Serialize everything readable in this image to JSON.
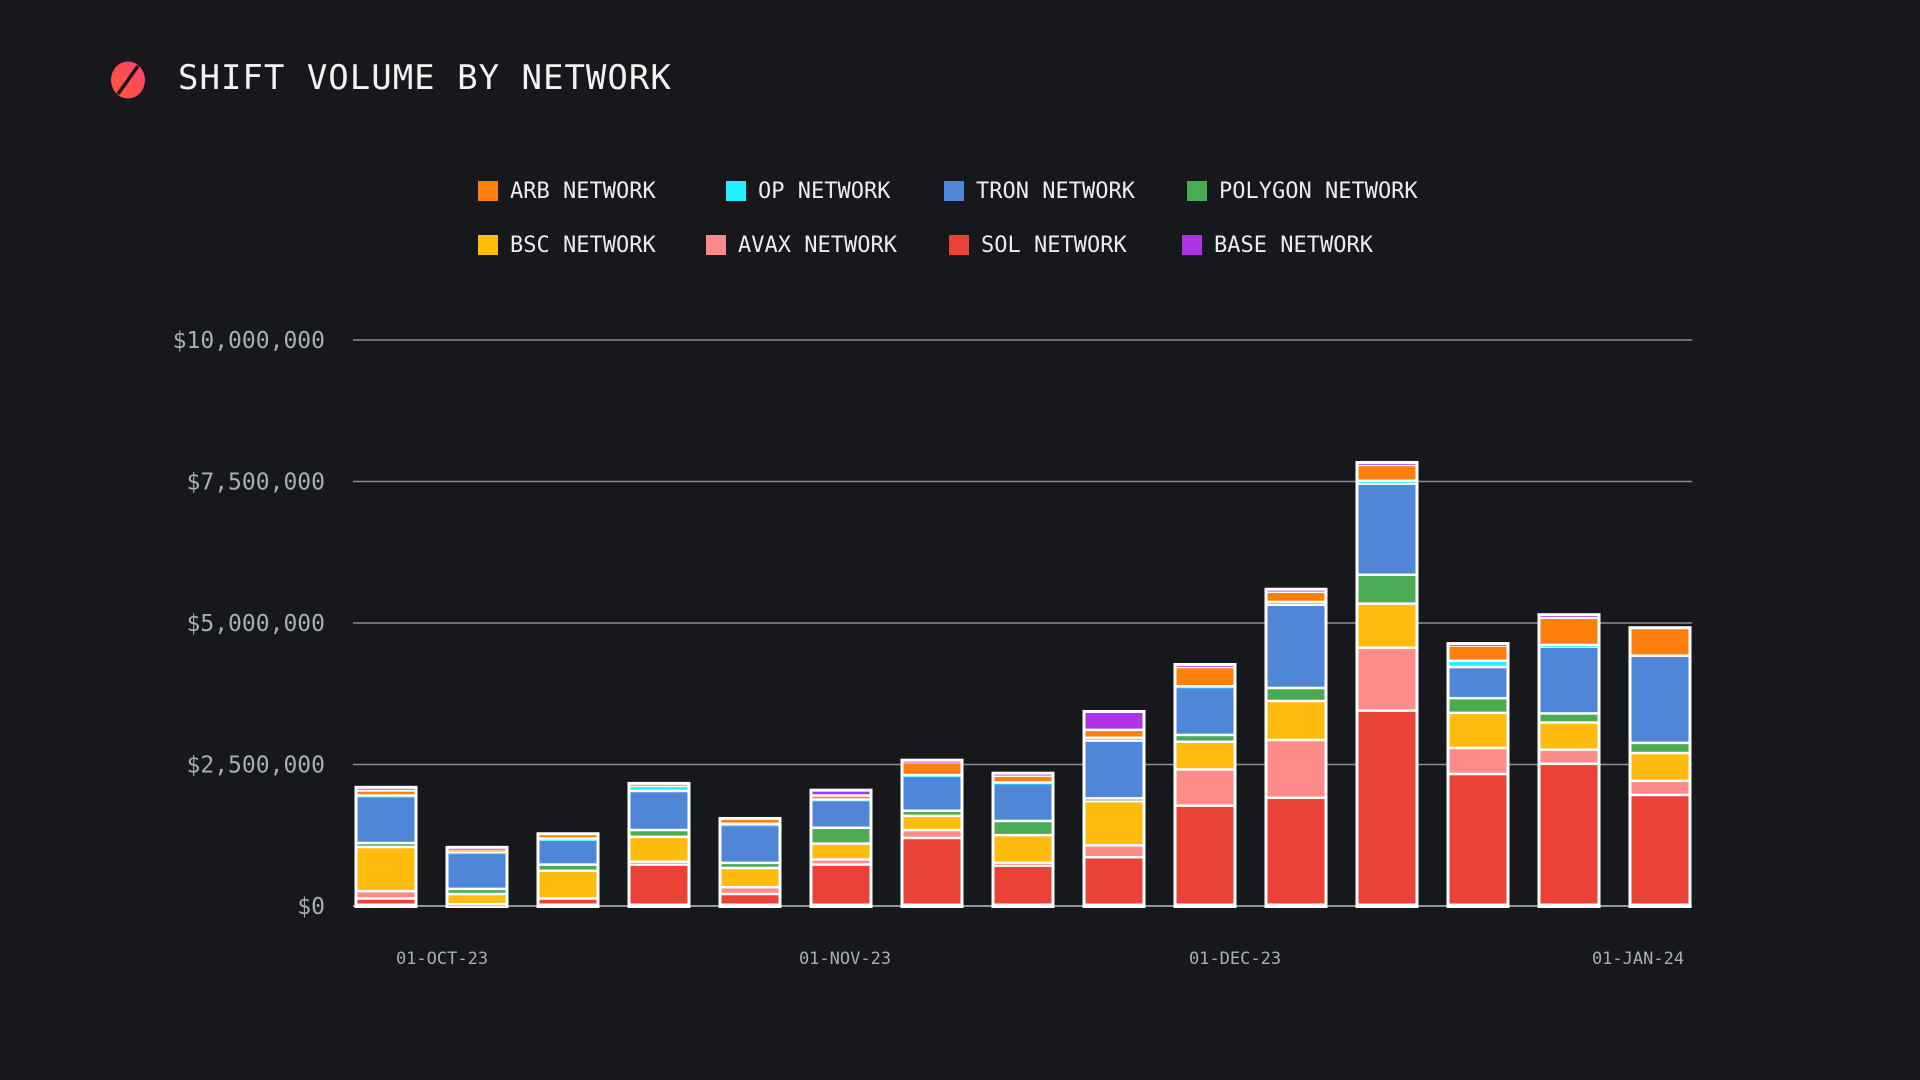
{
  "title": "SHIFT VOLUME BY NETWORK",
  "logo": {
    "icon": "shift-logo-icon",
    "colors": [
      "#ff4d6d",
      "#ff5a36"
    ]
  },
  "legend": [
    [
      {
        "label": "ARB NETWORK",
        "color": "#ff7f0e"
      },
      {
        "label": "OP NETWORK",
        "color": "#22f0ff"
      },
      {
        "label": "TRON NETWORK",
        "color": "#4f86d8"
      },
      {
        "label": "POLYGON NETWORK",
        "color": "#4bab55"
      }
    ],
    [
      {
        "label": "BSC NETWORK",
        "color": "#ffbb0e"
      },
      {
        "label": "AVAX NETWORK",
        "color": "#ff8a8a"
      },
      {
        "label": "SOL NETWORK",
        "color": "#ea4236"
      },
      {
        "label": "BASE NETWORK",
        "color": "#b032e6"
      }
    ]
  ],
  "chart_data": {
    "type": "bar",
    "stacked": true,
    "title": "SHIFT VOLUME BY NETWORK",
    "xlabel": "",
    "ylabel": "",
    "ylim": [
      0,
      10000000
    ],
    "yticks": [
      {
        "value": 0,
        "label": "$0"
      },
      {
        "value": 2500000,
        "label": "$2,500,000"
      },
      {
        "value": 5000000,
        "label": "$5,000,000"
      },
      {
        "value": 7500000,
        "label": "$7,500,000"
      },
      {
        "value": 10000000,
        "label": "$10,000,000"
      }
    ],
    "xticks": [
      {
        "date": "2023-10-01",
        "label": "01-OCT-23"
      },
      {
        "date": "2023-11-01",
        "label": "01-NOV-23"
      },
      {
        "date": "2023-12-01",
        "label": "01-DEC-23"
      },
      {
        "date": "2024-01-01",
        "label": "01-JAN-24"
      }
    ],
    "grid": true,
    "legend_position": "top",
    "x": [
      "2023-09-27",
      "2023-10-04",
      "2023-10-11",
      "2023-10-18",
      "2023-10-25",
      "2023-11-01",
      "2023-11-08",
      "2023-11-15",
      "2023-11-22",
      "2023-11-29",
      "2023-12-06",
      "2023-12-13",
      "2023-12-20",
      "2023-12-27",
      "2024-01-03"
    ],
    "series": [
      {
        "name": "SOL NETWORK",
        "color": "#ea4236",
        "values": [
          110000,
          0,
          110000,
          710000,
          190000,
          710000,
          1180000,
          690000,
          840000,
          1750000,
          1890000,
          3430000,
          2310000,
          2490000,
          1940000
        ]
      },
      {
        "name": "AVAX NETWORK",
        "color": "#ff8a8a",
        "values": [
          130000,
          10000,
          0,
          50000,
          120000,
          90000,
          140000,
          50000,
          210000,
          640000,
          1020000,
          1110000,
          460000,
          250000,
          250000
        ]
      },
      {
        "name": "BSC NETWORK",
        "color": "#ffbb0e",
        "values": [
          780000,
          180000,
          490000,
          440000,
          340000,
          280000,
          250000,
          490000,
          780000,
          490000,
          690000,
          780000,
          620000,
          480000,
          490000
        ]
      },
      {
        "name": "POLYGON NETWORK",
        "color": "#4bab55",
        "values": [
          70000,
          90000,
          110000,
          120000,
          90000,
          280000,
          90000,
          250000,
          50000,
          120000,
          230000,
          510000,
          260000,
          160000,
          180000
        ]
      },
      {
        "name": "TRON NETWORK",
        "color": "#4f86d8",
        "values": [
          830000,
          640000,
          440000,
          690000,
          670000,
          490000,
          620000,
          670000,
          1020000,
          850000,
          1470000,
          1610000,
          550000,
          1180000,
          1540000
        ]
      },
      {
        "name": "OP NETWORK",
        "color": "#22f0ff",
        "values": [
          10000,
          10000,
          20000,
          90000,
          20000,
          10000,
          10000,
          10000,
          50000,
          10000,
          50000,
          50000,
          110000,
          30000,
          0
        ]
      },
      {
        "name": "ARB NETWORK",
        "color": "#ff7f0e",
        "values": [
          90000,
          50000,
          80000,
          40000,
          90000,
          70000,
          230000,
          120000,
          140000,
          340000,
          180000,
          280000,
          270000,
          480000,
          490000
        ]
      },
      {
        "name": "BASE NETWORK",
        "color": "#b032e6",
        "values": [
          50000,
          30000,
          0,
          0,
          0,
          90000,
          30000,
          40000,
          320000,
          40000,
          40000,
          40000,
          30000,
          50000,
          0
        ]
      }
    ]
  }
}
